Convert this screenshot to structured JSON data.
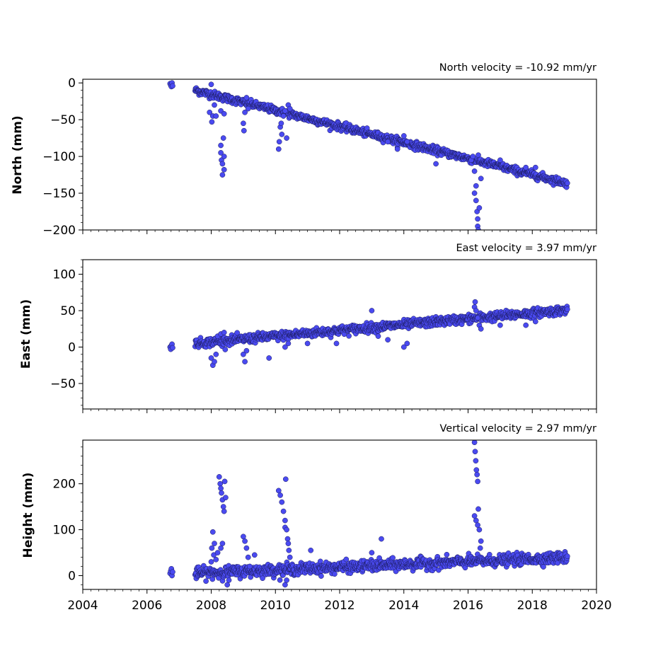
{
  "colors": {
    "marker_fill": "#4a4af0",
    "marker_edge": "#1a1a5a"
  },
  "chart_data": [
    {
      "type": "scatter",
      "title": "North velocity = -10.92 mm/yr",
      "ylabel": "North (mm)",
      "xlabel": "",
      "xlim": [
        2004,
        2020
      ],
      "ylim": [
        -200,
        5
      ],
      "x_major_ticks": [
        2004,
        2006,
        2008,
        2010,
        2012,
        2014,
        2016,
        2018,
        2020
      ],
      "y_major_ticks": [
        -200,
        -150,
        -100,
        -50,
        0
      ],
      "y_minor_step": 10,
      "x_tick_labels_shown": false,
      "series": [
        {
          "trend": {
            "x0": 2007.5,
            "y0": -10,
            "slope": -10.92,
            "x_end": 2019.1
          },
          "scatter_sd": 2.5,
          "points": [
            [
              2006.72,
              -1
            ],
            [
              2006.74,
              -3
            ],
            [
              2006.76,
              -5
            ],
            [
              2006.78,
              0
            ],
            [
              2006.8,
              -4
            ],
            [
              2008.0,
              -2
            ],
            [
              2008.02,
              -53
            ],
            [
              2007.95,
              -40
            ],
            [
              2008.05,
              -45
            ],
            [
              2008.1,
              -30
            ],
            [
              2008.15,
              -45
            ],
            [
              2008.3,
              -85
            ],
            [
              2008.3,
              -95
            ],
            [
              2008.32,
              -105
            ],
            [
              2008.35,
              -110
            ],
            [
              2008.35,
              -125
            ],
            [
              2008.38,
              -75
            ],
            [
              2008.4,
              -100
            ],
            [
              2008.4,
              -118
            ],
            [
              2008.3,
              -38
            ],
            [
              2008.4,
              -42
            ],
            [
              2009.0,
              -55
            ],
            [
              2009.02,
              -65
            ],
            [
              2009.05,
              -40
            ],
            [
              2009.1,
              -20
            ],
            [
              2009.15,
              -35
            ],
            [
              2010.1,
              -90
            ],
            [
              2010.12,
              -80
            ],
            [
              2010.15,
              -60
            ],
            [
              2010.18,
              -55
            ],
            [
              2010.2,
              -70
            ],
            [
              2010.25,
              -45
            ],
            [
              2010.3,
              -38
            ],
            [
              2010.35,
              -75
            ],
            [
              2010.4,
              -30
            ],
            [
              2010.45,
              -35
            ],
            [
              2013.5,
              -80
            ],
            [
              2013.8,
              -90
            ],
            [
              2014.0,
              -72
            ],
            [
              2014.1,
              -80
            ],
            [
              2015.0,
              -110
            ],
            [
              2016.2,
              -120
            ],
            [
              2016.25,
              -140
            ],
            [
              2016.25,
              -160
            ],
            [
              2016.28,
              -175
            ],
            [
              2016.3,
              -185
            ],
            [
              2016.3,
              -195
            ],
            [
              2016.32,
              -200
            ],
            [
              2016.2,
              -150
            ],
            [
              2016.35,
              -170
            ],
            [
              2016.4,
              -130
            ],
            [
              2016.1,
              -105
            ],
            [
              2016.15,
              -100
            ],
            [
              2017.0,
              -105
            ],
            [
              2017.8,
              -115
            ],
            [
              2018.1,
              -115
            ]
          ]
        }
      ]
    },
    {
      "type": "scatter",
      "title": "East velocity = 3.97 mm/yr",
      "ylabel": "East (mm)",
      "xlabel": "",
      "xlim": [
        2004,
        2020
      ],
      "ylim": [
        -85,
        120
      ],
      "x_major_ticks": [
        2004,
        2006,
        2008,
        2010,
        2012,
        2014,
        2016,
        2018,
        2020
      ],
      "y_major_ticks": [
        -50,
        0,
        50,
        100
      ],
      "y_minor_step": 10,
      "x_tick_labels_shown": false,
      "series": [
        {
          "trend": {
            "x0": 2007.5,
            "y0": 5,
            "slope": 3.97,
            "x_end": 2019.1
          },
          "scatter_sd": 3,
          "points": [
            [
              2006.72,
              0
            ],
            [
              2006.74,
              -3
            ],
            [
              2006.76,
              2
            ],
            [
              2006.78,
              4
            ],
            [
              2006.8,
              -1
            ],
            [
              2008.0,
              -15
            ],
            [
              2008.05,
              -25
            ],
            [
              2008.1,
              -20
            ],
            [
              2008.15,
              -10
            ],
            [
              2008.2,
              15
            ],
            [
              2008.3,
              18
            ],
            [
              2008.4,
              20
            ],
            [
              2009.0,
              -10
            ],
            [
              2009.05,
              -20
            ],
            [
              2009.1,
              -5
            ],
            [
              2009.8,
              -15
            ],
            [
              2010.3,
              0
            ],
            [
              2010.4,
              5
            ],
            [
              2011.0,
              5
            ],
            [
              2011.9,
              5
            ],
            [
              2013.0,
              50
            ],
            [
              2013.2,
              15
            ],
            [
              2013.5,
              10
            ],
            [
              2014.0,
              0
            ],
            [
              2014.1,
              5
            ],
            [
              2016.2,
              55
            ],
            [
              2016.22,
              62
            ],
            [
              2016.25,
              50
            ],
            [
              2016.3,
              40
            ],
            [
              2016.35,
              30
            ],
            [
              2016.4,
              25
            ],
            [
              2017.0,
              30
            ],
            [
              2017.8,
              30
            ],
            [
              2018.1,
              35
            ]
          ]
        }
      ]
    },
    {
      "type": "scatter",
      "title": "Vertical velocity = 2.97 mm/yr",
      "ylabel": "Height (mm)",
      "xlabel": "",
      "xlim": [
        2004,
        2020
      ],
      "ylim": [
        -30,
        295
      ],
      "x_major_ticks": [
        2004,
        2006,
        2008,
        2010,
        2012,
        2014,
        2016,
        2018,
        2020
      ],
      "x_tick_labels": [
        "2004",
        "2006",
        "2008",
        "2010",
        "2012",
        "2014",
        "2016",
        "2018",
        "2020"
      ],
      "y_major_ticks": [
        0,
        100,
        200
      ],
      "y_minor_step": 20,
      "x_tick_labels_shown": true,
      "series": [
        {
          "trend": {
            "x0": 2007.5,
            "y0": 5,
            "slope": 2.97,
            "x_end": 2019.1
          },
          "scatter_sd": 6,
          "points": [
            [
              2006.72,
              5
            ],
            [
              2006.74,
              10
            ],
            [
              2006.76,
              15
            ],
            [
              2006.78,
              0
            ],
            [
              2006.8,
              8
            ],
            [
              2008.0,
              30
            ],
            [
              2008.02,
              60
            ],
            [
              2008.05,
              95
            ],
            [
              2008.08,
              45
            ],
            [
              2008.1,
              70
            ],
            [
              2008.15,
              35
            ],
            [
              2008.2,
              50
            ],
            [
              2008.25,
              215
            ],
            [
              2008.28,
              200
            ],
            [
              2008.3,
              190
            ],
            [
              2008.32,
              180
            ],
            [
              2008.35,
              165
            ],
            [
              2008.38,
              150
            ],
            [
              2008.4,
              140
            ],
            [
              2008.42,
              205
            ],
            [
              2008.45,
              170
            ],
            [
              2008.3,
              60
            ],
            [
              2008.35,
              70
            ],
            [
              2008.5,
              -20
            ],
            [
              2008.55,
              -10
            ],
            [
              2009.0,
              85
            ],
            [
              2009.05,
              75
            ],
            [
              2009.1,
              60
            ],
            [
              2009.15,
              40
            ],
            [
              2009.2,
              20
            ],
            [
              2009.35,
              45
            ],
            [
              2010.1,
              185
            ],
            [
              2010.15,
              175
            ],
            [
              2010.2,
              160
            ],
            [
              2010.25,
              140
            ],
            [
              2010.3,
              120
            ],
            [
              2010.3,
              105
            ],
            [
              2010.32,
              210
            ],
            [
              2010.35,
              100
            ],
            [
              2010.38,
              80
            ],
            [
              2010.4,
              70
            ],
            [
              2010.42,
              55
            ],
            [
              2010.45,
              40
            ],
            [
              2010.3,
              -20
            ],
            [
              2010.35,
              -10
            ],
            [
              2011.1,
              55
            ],
            [
              2013.3,
              80
            ],
            [
              2013.0,
              50
            ],
            [
              2016.2,
              290
            ],
            [
              2016.22,
              270
            ],
            [
              2016.24,
              250
            ],
            [
              2016.26,
              230
            ],
            [
              2016.28,
              220
            ],
            [
              2016.3,
              205
            ],
            [
              2016.2,
              130
            ],
            [
              2016.25,
              120
            ],
            [
              2016.3,
              110
            ],
            [
              2016.32,
              145
            ],
            [
              2016.35,
              100
            ],
            [
              2016.38,
              60
            ],
            [
              2016.4,
              75
            ]
          ]
        }
      ]
    }
  ]
}
